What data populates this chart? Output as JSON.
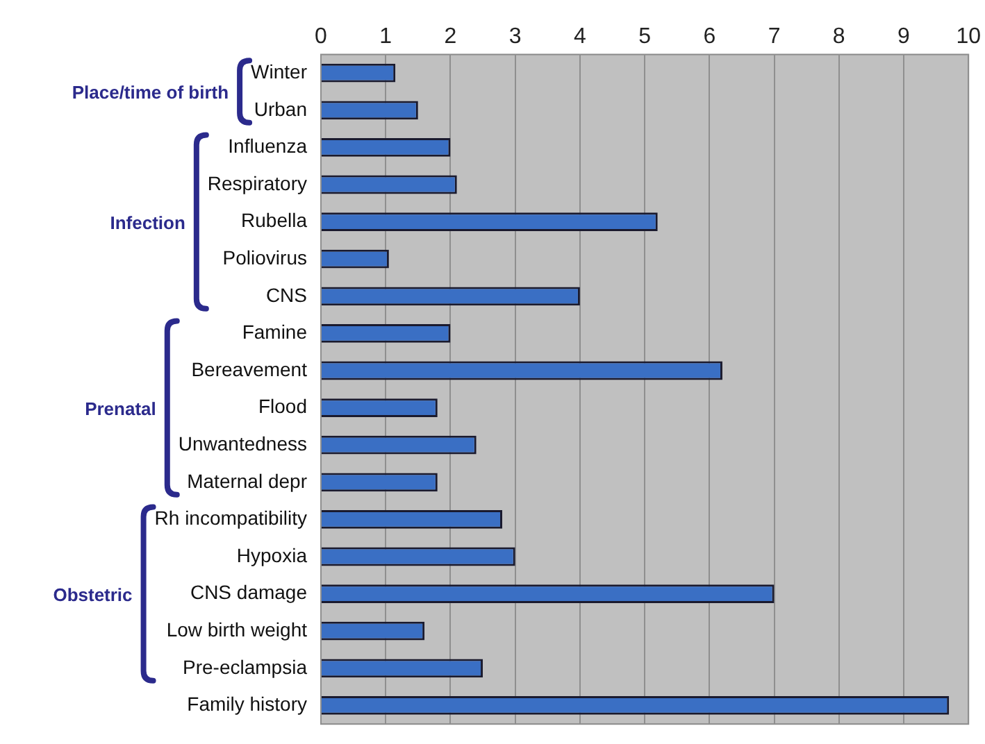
{
  "chart_data": {
    "type": "bar",
    "orientation": "horizontal",
    "categories": [
      "Winter",
      "Urban",
      "Influenza",
      "Respiratory",
      "Rubella",
      "Poliovirus",
      "CNS",
      "Famine",
      "Bereavement",
      "Flood",
      "Unwantedness",
      "Maternal depr",
      "Rh incompatibility",
      "Hypoxia",
      "CNS damage",
      "Low birth weight",
      "Pre-eclampsia",
      "Family history"
    ],
    "values": [
      1.15,
      1.5,
      2.0,
      2.1,
      5.2,
      1.05,
      4.0,
      2.0,
      6.2,
      1.8,
      2.4,
      1.8,
      2.8,
      3.0,
      7.0,
      1.6,
      2.5,
      9.7
    ],
    "color": "#3a6fc4",
    "xlim": [
      0,
      10
    ],
    "xticks": [
      0,
      1,
      2,
      3,
      4,
      5,
      6,
      7,
      8,
      9,
      10
    ],
    "grid": "x",
    "annotations": [
      "Place/time of birth",
      "Infection",
      "Prenatal",
      "Obstetric"
    ]
  }
}
